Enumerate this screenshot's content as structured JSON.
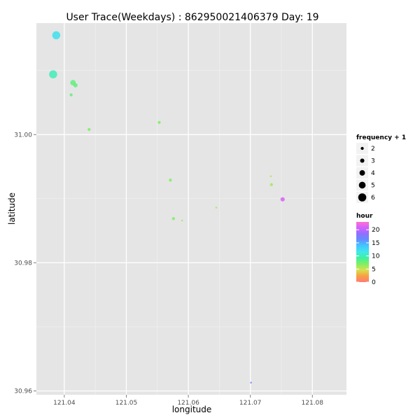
{
  "chart_data": {
    "type": "scatter",
    "title": "User Trace(Weekdays) : 862950021406379  Day:  19",
    "xlabel": "longitude",
    "ylabel": "latitude",
    "xlim": [
      121.0355,
      121.0855
    ],
    "ylim": [
      30.9594,
      31.0174
    ],
    "x_ticks": [
      121.04,
      121.05,
      121.06,
      121.07,
      121.08
    ],
    "x_tick_labels": [
      "121.04",
      "121.05",
      "121.06",
      "121.07",
      "121.08"
    ],
    "y_ticks": [
      30.96,
      30.98,
      31.0
    ],
    "y_tick_labels": [
      "30.96",
      "30.98",
      "31.00"
    ],
    "grid": true,
    "size_legend": {
      "title": "frequency + 1",
      "values": [
        2,
        3,
        4,
        5,
        6
      ],
      "labels": [
        "2",
        "3",
        "4",
        "5",
        "6"
      ]
    },
    "color_legend": {
      "title": "hour",
      "range": [
        0,
        23
      ],
      "ticks": [
        0,
        5,
        10,
        15,
        20
      ],
      "labels": [
        "0",
        "5",
        "10",
        "15",
        "20"
      ]
    },
    "legend_position": "right",
    "points": [
      {
        "x": 121.0387,
        "y": 31.0155,
        "hour": 12,
        "freq": 6
      },
      {
        "x": 121.0382,
        "y": 31.0094,
        "hour": 10,
        "freq": 6
      },
      {
        "x": 121.0414,
        "y": 31.0081,
        "hour": 8,
        "freq": 4
      },
      {
        "x": 121.0418,
        "y": 31.0077,
        "hour": 8,
        "freq": 3
      },
      {
        "x": 121.0411,
        "y": 31.0062,
        "hour": 8,
        "freq": 2
      },
      {
        "x": 121.044,
        "y": 31.0008,
        "hour": 7,
        "freq": 2
      },
      {
        "x": 121.0553,
        "y": 31.0019,
        "hour": 7,
        "freq": 2
      },
      {
        "x": 121.0571,
        "y": 30.9929,
        "hour": 7,
        "freq": 2
      },
      {
        "x": 121.0576,
        "y": 30.9869,
        "hour": 7,
        "freq": 2
      },
      {
        "x": 121.059,
        "y": 30.9866,
        "hour": 6,
        "freq": 1
      },
      {
        "x": 121.0645,
        "y": 30.9886,
        "hour": 6,
        "freq": 1
      },
      {
        "x": 121.0733,
        "y": 30.9935,
        "hour": 6,
        "freq": 1
      },
      {
        "x": 121.0734,
        "y": 30.9922,
        "hour": 6,
        "freq": 2
      },
      {
        "x": 121.0752,
        "y": 30.9899,
        "hour": 21,
        "freq": 3
      },
      {
        "x": 121.0701,
        "y": 30.9613,
        "hour": 17,
        "freq": 1
      }
    ]
  }
}
